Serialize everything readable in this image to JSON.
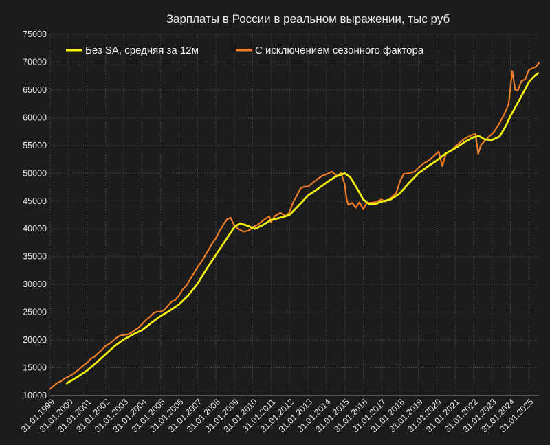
{
  "chart_data": {
    "type": "line",
    "title": "Зарплаты в России в реальном выражении, тыс руб",
    "xlabel": "",
    "ylabel": "",
    "ylim": [
      10000,
      75000
    ],
    "ytick_step": 5000,
    "yticks": [
      "10000",
      "15000",
      "20000",
      "25000",
      "30000",
      "35000",
      "40000",
      "45000",
      "50000",
      "55000",
      "60000",
      "65000",
      "70000",
      "75000"
    ],
    "xlim": [
      1999.0,
      2025.55
    ],
    "xticks": [
      {
        "x": 1999,
        "label": "31.01.1999"
      },
      {
        "x": 2000,
        "label": "31.01.2000"
      },
      {
        "x": 2001,
        "label": "31.01.2001"
      },
      {
        "x": 2002,
        "label": "31.01.2002"
      },
      {
        "x": 2003,
        "label": "31.01.2003"
      },
      {
        "x": 2004,
        "label": "31.01.2004"
      },
      {
        "x": 2005,
        "label": "31.01.2005"
      },
      {
        "x": 2006,
        "label": "31.01.2006"
      },
      {
        "x": 2007,
        "label": "31.01.2007"
      },
      {
        "x": 2008,
        "label": "31.01.2008"
      },
      {
        "x": 2009,
        "label": "31.01.2009"
      },
      {
        "x": 2010,
        "label": "31.01.2010"
      },
      {
        "x": 2011,
        "label": "31.01.2011"
      },
      {
        "x": 2012,
        "label": "31.01.2012"
      },
      {
        "x": 2013,
        "label": "31.01.2013"
      },
      {
        "x": 2014,
        "label": "31.01.2014"
      },
      {
        "x": 2015,
        "label": "31.01.2015"
      },
      {
        "x": 2016,
        "label": "31.01.2016"
      },
      {
        "x": 2017,
        "label": "31.01.2017"
      },
      {
        "x": 2018,
        "label": "31.01.2018"
      },
      {
        "x": 2019,
        "label": "31.01.2019"
      },
      {
        "x": 2020,
        "label": "31.01.2020"
      },
      {
        "x": 2021,
        "label": "31.01.2021"
      },
      {
        "x": 2022,
        "label": "31.01.2022"
      },
      {
        "x": 2023,
        "label": "31.01.2023"
      },
      {
        "x": 2024,
        "label": "31.01.2024"
      },
      {
        "x": 2025,
        "label": "31.01.2025"
      }
    ],
    "grid": true,
    "legend": "top-left",
    "series": [
      {
        "name": "Без SA, средняя за 12м",
        "color": "#f2f20a",
        "points": [
          [
            1999.9,
            12200
          ],
          [
            2000.5,
            13400
          ],
          [
            2001.0,
            14500
          ],
          [
            2001.5,
            15900
          ],
          [
            2002.0,
            17400
          ],
          [
            2002.5,
            18900
          ],
          [
            2003.0,
            20100
          ],
          [
            2003.5,
            21000
          ],
          [
            2004.0,
            21800
          ],
          [
            2004.5,
            23100
          ],
          [
            2005.0,
            24300
          ],
          [
            2005.5,
            25300
          ],
          [
            2006.0,
            26400
          ],
          [
            2006.5,
            28000
          ],
          [
            2007.0,
            30100
          ],
          [
            2007.5,
            32800
          ],
          [
            2008.0,
            35300
          ],
          [
            2008.5,
            37800
          ],
          [
            2009.0,
            40300
          ],
          [
            2009.3,
            41000
          ],
          [
            2009.7,
            40600
          ],
          [
            2010.1,
            40000
          ],
          [
            2010.5,
            40600
          ],
          [
            2011.0,
            41600
          ],
          [
            2011.5,
            42000
          ],
          [
            2012.0,
            42500
          ],
          [
            2012.5,
            44200
          ],
          [
            2013.0,
            46000
          ],
          [
            2013.5,
            47100
          ],
          [
            2014.0,
            48300
          ],
          [
            2014.5,
            49400
          ],
          [
            2015.0,
            50000
          ],
          [
            2015.3,
            49300
          ],
          [
            2015.7,
            47100
          ],
          [
            2016.0,
            45300
          ],
          [
            2016.3,
            44500
          ],
          [
            2016.7,
            44500
          ],
          [
            2017.0,
            44900
          ],
          [
            2017.5,
            45300
          ],
          [
            2018.0,
            46400
          ],
          [
            2018.5,
            48300
          ],
          [
            2019.0,
            50000
          ],
          [
            2019.5,
            51200
          ],
          [
            2020.0,
            52300
          ],
          [
            2020.5,
            53600
          ],
          [
            2021.0,
            54500
          ],
          [
            2021.5,
            55600
          ],
          [
            2022.0,
            56500
          ],
          [
            2022.3,
            56700
          ],
          [
            2022.6,
            56100
          ],
          [
            2023.0,
            56000
          ],
          [
            2023.4,
            56600
          ],
          [
            2023.7,
            58200
          ],
          [
            2024.0,
            60300
          ],
          [
            2024.5,
            63300
          ],
          [
            2025.0,
            66400
          ],
          [
            2025.3,
            67500
          ],
          [
            2025.5,
            68000
          ]
        ]
      },
      {
        "name": "С исключением сезонного фактора",
        "color": "#f07d28",
        "points": [
          [
            1999.0,
            11200
          ],
          [
            1999.2,
            11800
          ],
          [
            1999.4,
            12300
          ],
          [
            1999.6,
            12600
          ],
          [
            1999.8,
            13100
          ],
          [
            2000.0,
            13400
          ],
          [
            2000.2,
            13800
          ],
          [
            2000.4,
            14300
          ],
          [
            2000.6,
            14800
          ],
          [
            2000.8,
            15400
          ],
          [
            2001.0,
            15900
          ],
          [
            2001.2,
            16600
          ],
          [
            2001.4,
            17000
          ],
          [
            2001.6,
            17600
          ],
          [
            2001.8,
            18200
          ],
          [
            2002.0,
            18900
          ],
          [
            2002.2,
            19300
          ],
          [
            2002.4,
            19800
          ],
          [
            2002.6,
            20400
          ],
          [
            2002.8,
            20800
          ],
          [
            2003.0,
            20900
          ],
          [
            2003.2,
            21000
          ],
          [
            2003.4,
            21300
          ],
          [
            2003.6,
            21800
          ],
          [
            2003.8,
            22200
          ],
          [
            2004.0,
            22900
          ],
          [
            2004.2,
            23600
          ],
          [
            2004.4,
            24100
          ],
          [
            2004.6,
            24800
          ],
          [
            2004.8,
            25100
          ],
          [
            2005.0,
            25100
          ],
          [
            2005.2,
            25400
          ],
          [
            2005.4,
            26200
          ],
          [
            2005.6,
            26900
          ],
          [
            2005.8,
            27200
          ],
          [
            2006.0,
            28000
          ],
          [
            2006.2,
            29100
          ],
          [
            2006.4,
            29800
          ],
          [
            2006.6,
            30900
          ],
          [
            2006.8,
            32000
          ],
          [
            2007.0,
            33100
          ],
          [
            2007.2,
            34000
          ],
          [
            2007.4,
            35100
          ],
          [
            2007.6,
            36200
          ],
          [
            2007.8,
            37400
          ],
          [
            2008.0,
            38300
          ],
          [
            2008.2,
            39600
          ],
          [
            2008.4,
            40700
          ],
          [
            2008.6,
            41700
          ],
          [
            2008.8,
            42000
          ],
          [
            2009.0,
            40600
          ],
          [
            2009.2,
            40000
          ],
          [
            2009.5,
            39500
          ],
          [
            2009.8,
            39700
          ],
          [
            2010.0,
            40300
          ],
          [
            2010.3,
            40800
          ],
          [
            2010.6,
            41600
          ],
          [
            2010.9,
            42300
          ],
          [
            2011.0,
            41200
          ],
          [
            2011.2,
            42300
          ],
          [
            2011.5,
            42900
          ],
          [
            2011.8,
            42300
          ],
          [
            2012.0,
            43000
          ],
          [
            2012.2,
            44800
          ],
          [
            2012.4,
            46000
          ],
          [
            2012.6,
            47300
          ],
          [
            2012.8,
            47600
          ],
          [
            2013.0,
            47600
          ],
          [
            2013.2,
            48100
          ],
          [
            2013.5,
            48900
          ],
          [
            2013.8,
            49600
          ],
          [
            2014.0,
            49800
          ],
          [
            2014.3,
            50300
          ],
          [
            2014.6,
            49500
          ],
          [
            2014.8,
            50100
          ],
          [
            2015.0,
            48000
          ],
          [
            2015.1,
            45300
          ],
          [
            2015.2,
            44300
          ],
          [
            2015.4,
            44700
          ],
          [
            2015.6,
            43800
          ],
          [
            2015.8,
            44800
          ],
          [
            2016.0,
            43500
          ],
          [
            2016.2,
            44700
          ],
          [
            2016.5,
            44700
          ],
          [
            2016.8,
            45000
          ],
          [
            2017.0,
            45300
          ],
          [
            2017.2,
            44900
          ],
          [
            2017.5,
            45500
          ],
          [
            2017.8,
            46500
          ],
          [
            2018.0,
            48500
          ],
          [
            2018.2,
            49900
          ],
          [
            2018.5,
            50000
          ],
          [
            2018.8,
            50300
          ],
          [
            2019.0,
            51000
          ],
          [
            2019.3,
            51800
          ],
          [
            2019.6,
            52400
          ],
          [
            2019.9,
            53300
          ],
          [
            2020.1,
            53900
          ],
          [
            2020.3,
            51300
          ],
          [
            2020.5,
            53600
          ],
          [
            2020.8,
            54100
          ],
          [
            2021.0,
            54800
          ],
          [
            2021.3,
            55700
          ],
          [
            2021.6,
            56400
          ],
          [
            2021.9,
            56900
          ],
          [
            2022.1,
            57100
          ],
          [
            2022.25,
            53500
          ],
          [
            2022.4,
            55100
          ],
          [
            2022.6,
            55800
          ],
          [
            2022.9,
            56800
          ],
          [
            2023.1,
            57400
          ],
          [
            2023.3,
            58400
          ],
          [
            2023.6,
            60200
          ],
          [
            2023.9,
            62400
          ],
          [
            2024.1,
            68400
          ],
          [
            2024.25,
            65100
          ],
          [
            2024.4,
            64900
          ],
          [
            2024.6,
            66600
          ],
          [
            2024.8,
            66900
          ],
          [
            2025.0,
            68600
          ],
          [
            2025.2,
            68900
          ],
          [
            2025.4,
            69200
          ],
          [
            2025.55,
            69900
          ]
        ]
      }
    ]
  }
}
